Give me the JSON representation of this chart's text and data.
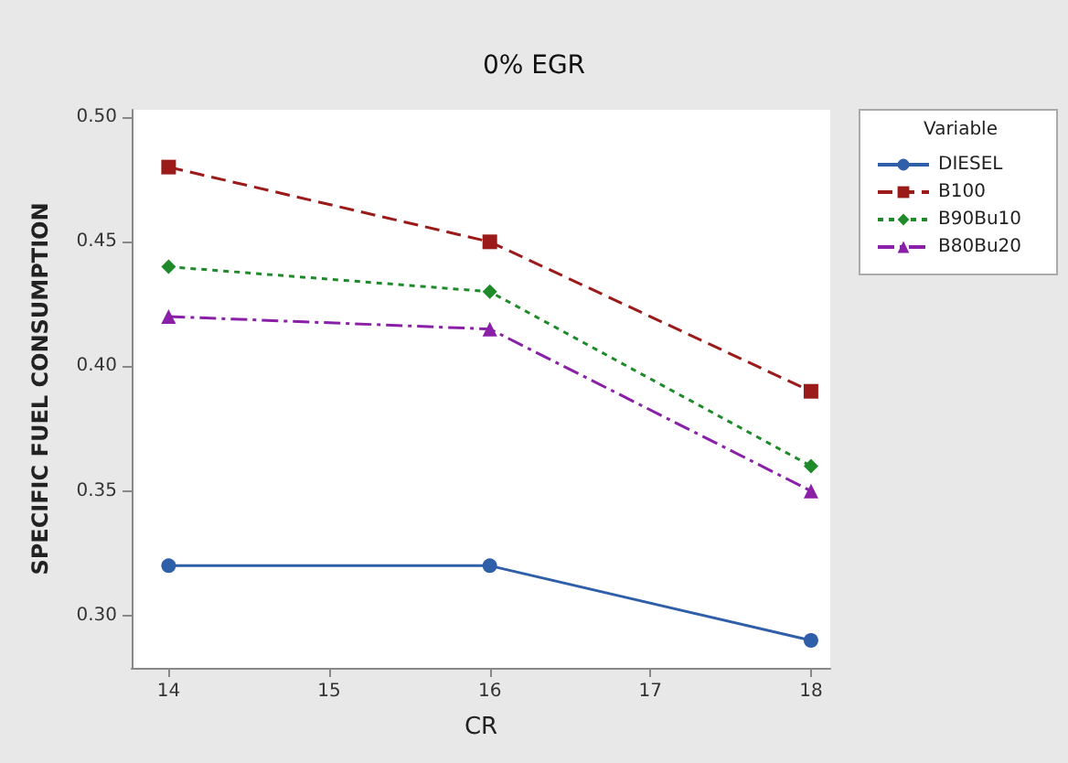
{
  "chart_data": {
    "type": "line",
    "title": "0% EGR",
    "xlabel": "CR",
    "ylabel": "SPECIFIC FUEL CONSUMPTION",
    "legend_title": "Variable",
    "legend": "right",
    "x": [
      14,
      16,
      18
    ],
    "xlim": [
      13.77,
      18.12
    ],
    "xticks": [
      14,
      15,
      16,
      17,
      18
    ],
    "ylim": [
      0.279,
      0.503
    ],
    "yticks": [
      {
        "value": 0.3,
        "label": "0.30"
      },
      {
        "value": 0.35,
        "label": "0.35"
      },
      {
        "value": 0.4,
        "label": "0.40"
      },
      {
        "value": 0.45,
        "label": "0.45"
      },
      {
        "value": 0.5,
        "label": "0.50"
      }
    ],
    "series": [
      {
        "name": "DIESEL",
        "color": "#2e5fa8",
        "values": [
          0.32,
          0.32,
          0.29
        ],
        "marker": "circle",
        "line_style": "solid"
      },
      {
        "name": "B100",
        "color": "#9b1b1b",
        "values": [
          0.48,
          0.45,
          0.39
        ],
        "marker": "square",
        "line_style": "dashed"
      },
      {
        "name": "B90Bu10",
        "color": "#1e8a2a",
        "values": [
          0.44,
          0.43,
          0.36
        ],
        "marker": "diamond",
        "line_style": "dotted"
      },
      {
        "name": "B80Bu20",
        "color": "#8a1fa8",
        "values": [
          0.42,
          0.415,
          0.35
        ],
        "marker": "triangle",
        "line_style": "dashdot"
      }
    ]
  }
}
